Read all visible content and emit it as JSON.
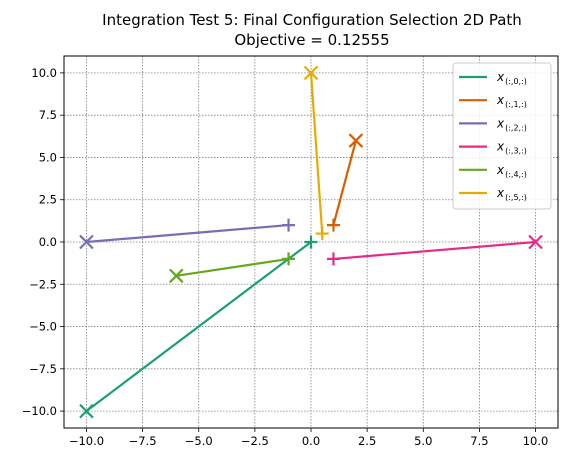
{
  "chart_data": {
    "type": "line",
    "title": "Integration Test 5: Final Configuration Selection 2D Path",
    "subtitle": "Objective = 0.12555",
    "xlabel": "",
    "ylabel": "",
    "xlim": [
      -11,
      11
    ],
    "ylim": [
      -11,
      11
    ],
    "xticks": [
      -10.0,
      -7.5,
      -5.0,
      -2.5,
      0.0,
      2.5,
      5.0,
      7.5,
      10.0
    ],
    "yticks": [
      -10.0,
      -7.5,
      -5.0,
      -2.5,
      0.0,
      2.5,
      5.0,
      7.5,
      10.0
    ],
    "xtick_labels": [
      "−10.0",
      "−7.5",
      "−5.0",
      "−2.5",
      "0.0",
      "2.5",
      "5.0",
      "7.5",
      "10.0"
    ],
    "ytick_labels": [
      "−10.0",
      "−7.5",
      "−5.0",
      "−2.5",
      "0.0",
      "2.5",
      "5.0",
      "7.5",
      "10.0"
    ],
    "grid": true,
    "legend": "top-right",
    "series": [
      {
        "name": "x",
        "sub": "(:,0,:)",
        "color": "#1b9e77",
        "points": [
          [
            -10,
            -10
          ],
          [
            0,
            0
          ]
        ]
      },
      {
        "name": "x",
        "sub": "(:,1,:)",
        "color": "#d95f02",
        "points": [
          [
            2,
            6
          ],
          [
            1,
            1
          ]
        ]
      },
      {
        "name": "x",
        "sub": "(:,2,:)",
        "color": "#7570b3",
        "points": [
          [
            -10,
            0
          ],
          [
            -1,
            1
          ]
        ]
      },
      {
        "name": "x",
        "sub": "(:,3,:)",
        "color": "#e7298a",
        "points": [
          [
            10,
            0
          ],
          [
            1,
            -1
          ]
        ]
      },
      {
        "name": "x",
        "sub": "(:,4,:)",
        "color": "#66a61e",
        "points": [
          [
            -6,
            -2
          ],
          [
            -1,
            -1
          ]
        ]
      },
      {
        "name": "x",
        "sub": "(:,5,:)",
        "color": "#e6ab02",
        "points": [
          [
            0,
            10
          ],
          [
            0.5,
            0.5
          ]
        ]
      }
    ]
  }
}
